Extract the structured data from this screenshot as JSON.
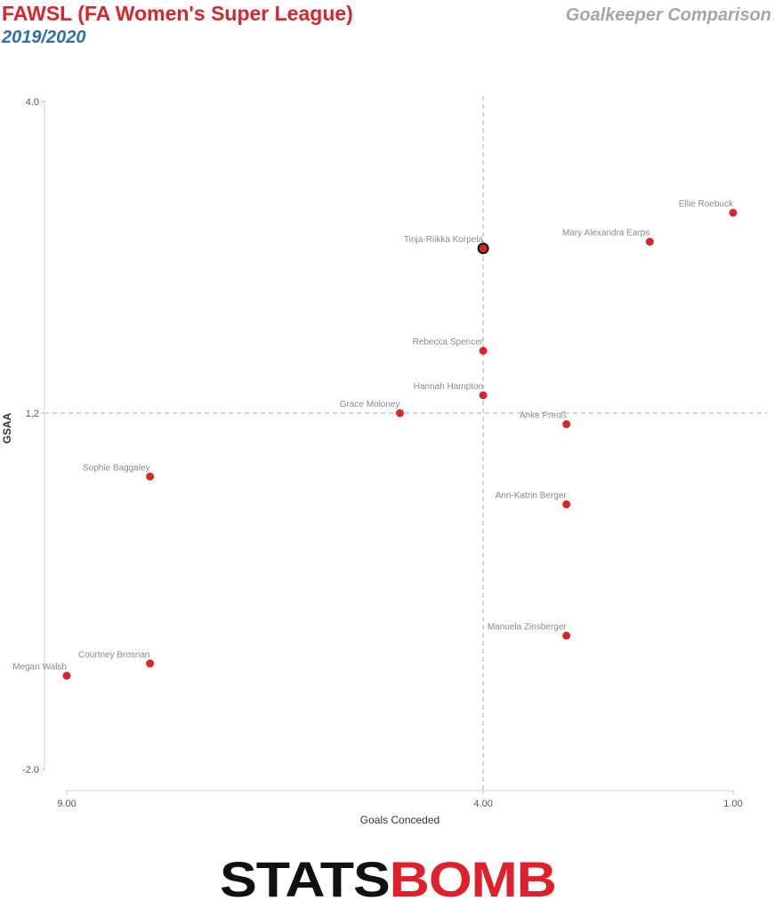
{
  "header": {
    "title": "FAWSL (FA Women's Super League)",
    "season": "2019/2020",
    "right_title": "Goalkeeper Comparison"
  },
  "brand": {
    "part1": "STATS",
    "part2": "BOMB",
    "color_dark": "#111111",
    "color_red": "#e0202a"
  },
  "colors": {
    "point": "#d7262c",
    "highlight_stroke": "#111111",
    "reference_line": "#c8c8c8"
  },
  "chart_data": {
    "type": "scatter",
    "xlabel": "Goals Conceded",
    "ylabel": "GSAA",
    "xlim": [
      9.0,
      1.0
    ],
    "ylim": [
      -2.0,
      4.0
    ],
    "x_reversed": true,
    "x_ticks": [
      9.0,
      4.0,
      1.0
    ],
    "x_tick_labels": [
      "9.00",
      "4.00",
      "1.00"
    ],
    "y_ticks": [
      4.0,
      1.2,
      -2.0
    ],
    "y_tick_labels": [
      "4.0",
      "1.2",
      "-2.0"
    ],
    "reference_lines": {
      "x": 4.0,
      "y": 1.2
    },
    "grid": false,
    "points": [
      {
        "name": "Ellie Roebuck",
        "x": 1.0,
        "y": 3.0
      },
      {
        "name": "Mary Alexandra Earps",
        "x": 2.0,
        "y": 2.74
      },
      {
        "name": "Tinja-Riikka Korpela",
        "x": 4.0,
        "y": 2.68,
        "highlight": true
      },
      {
        "name": "Rebecca Spencer",
        "x": 4.0,
        "y": 1.76
      },
      {
        "name": "Hannah Hampton",
        "x": 4.0,
        "y": 1.36
      },
      {
        "name": "Grace Moloney",
        "x": 5.0,
        "y": 1.2
      },
      {
        "name": "Anke Preuß",
        "x": 3.0,
        "y": 1.1
      },
      {
        "name": "Sophie Baggaley",
        "x": 8.0,
        "y": 0.63
      },
      {
        "name": "Ann-Katrin Berger",
        "x": 3.0,
        "y": 0.38
      },
      {
        "name": "Manuela Zinsberger",
        "x": 3.0,
        "y": -0.8
      },
      {
        "name": "Courtney Brosnan",
        "x": 8.0,
        "y": -1.05
      },
      {
        "name": "Megan Walsh",
        "x": 9.0,
        "y": -1.16
      }
    ]
  }
}
